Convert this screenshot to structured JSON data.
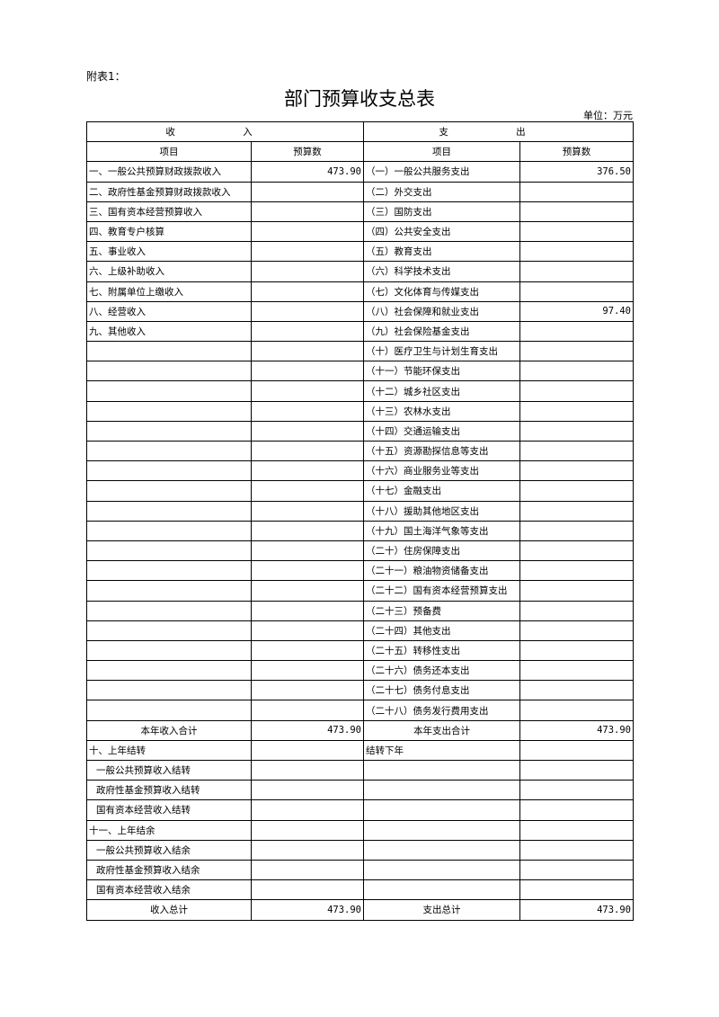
{
  "header": {
    "note": "附表1：",
    "title": "部门预算收支总表",
    "unit": "单位：万元"
  },
  "table": {
    "group_headers": {
      "income": "收 入",
      "expense": "支 出"
    },
    "column_headers": {
      "income_item": "项目",
      "income_budget": "预算数",
      "expense_item": "项目",
      "expense_budget": "预算数"
    },
    "rows": [
      {
        "income_item": "一、一般公共预算财政拨款收入",
        "income_budget": "473.90",
        "expense_item": "（一）一般公共服务支出",
        "expense_budget": "376.50"
      },
      {
        "income_item": "二、政府性基金预算财政拨款收入",
        "expense_item": "（二）外交支出"
      },
      {
        "income_item": "三、国有资本经营预算收入",
        "expense_item": "（三）国防支出"
      },
      {
        "income_item": "四、教育专户核算",
        "expense_item": "（四）公共安全支出"
      },
      {
        "income_item": "五、事业收入",
        "expense_item": "（五）教育支出"
      },
      {
        "income_item": "六、上级补助收入",
        "expense_item": "（六）科学技术支出"
      },
      {
        "income_item": "七、附属单位上缴收入",
        "expense_item": "（七）文化体育与传媒支出"
      },
      {
        "income_item": "八、经营收入",
        "expense_item": "（八）社会保障和就业支出",
        "expense_budget": "97.40"
      },
      {
        "income_item": "九、其他收入",
        "expense_item": "（九）社会保险基金支出"
      },
      {
        "expense_item": "（十）医疗卫生与计划生育支出"
      },
      {
        "expense_item": "（十一）节能环保支出"
      },
      {
        "expense_item": "（十二）城乡社区支出"
      },
      {
        "expense_item": "（十三）农林水支出"
      },
      {
        "expense_item": "（十四）交通运输支出"
      },
      {
        "expense_item": "（十五）资源勘探信息等支出"
      },
      {
        "expense_item": "（十六）商业服务业等支出"
      },
      {
        "expense_item": "（十七）金融支出"
      },
      {
        "expense_item": "（十八）援助其他地区支出"
      },
      {
        "expense_item": "（十九）国土海洋气象等支出"
      },
      {
        "expense_item": "（二十）住房保障支出"
      },
      {
        "expense_item": "（二十一）粮油物资储备支出"
      },
      {
        "expense_item": "（二十二）国有资本经营预算支出"
      },
      {
        "expense_item": "（二十三）预备费"
      },
      {
        "expense_item": "（二十四）其他支出"
      },
      {
        "expense_item": "（二十五）转移性支出"
      },
      {
        "expense_item": "（二十六）债务还本支出"
      },
      {
        "expense_item": "（二十七）债务付息支出"
      },
      {
        "expense_item": "（二十八）债务发行费用支出"
      },
      {
        "income_item": "本年收入合计",
        "income_budget": "473.90",
        "expense_item": "本年支出合计",
        "expense_budget": "473.90"
      },
      {
        "income_item": "十、上年结转",
        "expense_item": "结转下年"
      },
      {
        "income_item": "一般公共预算收入结转"
      },
      {
        "income_item": "政府性基金预算收入结转"
      },
      {
        "income_item": "国有资本经营收入结转"
      },
      {
        "income_item": "十一、上年结余"
      },
      {
        "income_item": "一般公共预算收入结余"
      },
      {
        "income_item": "政府性基金预算收入结余"
      },
      {
        "income_item": "国有资本经营收入结余"
      },
      {
        "income_item": "收入总计",
        "income_budget": "473.90",
        "expense_item": "支出总计",
        "expense_budget": "473.90"
      }
    ]
  }
}
